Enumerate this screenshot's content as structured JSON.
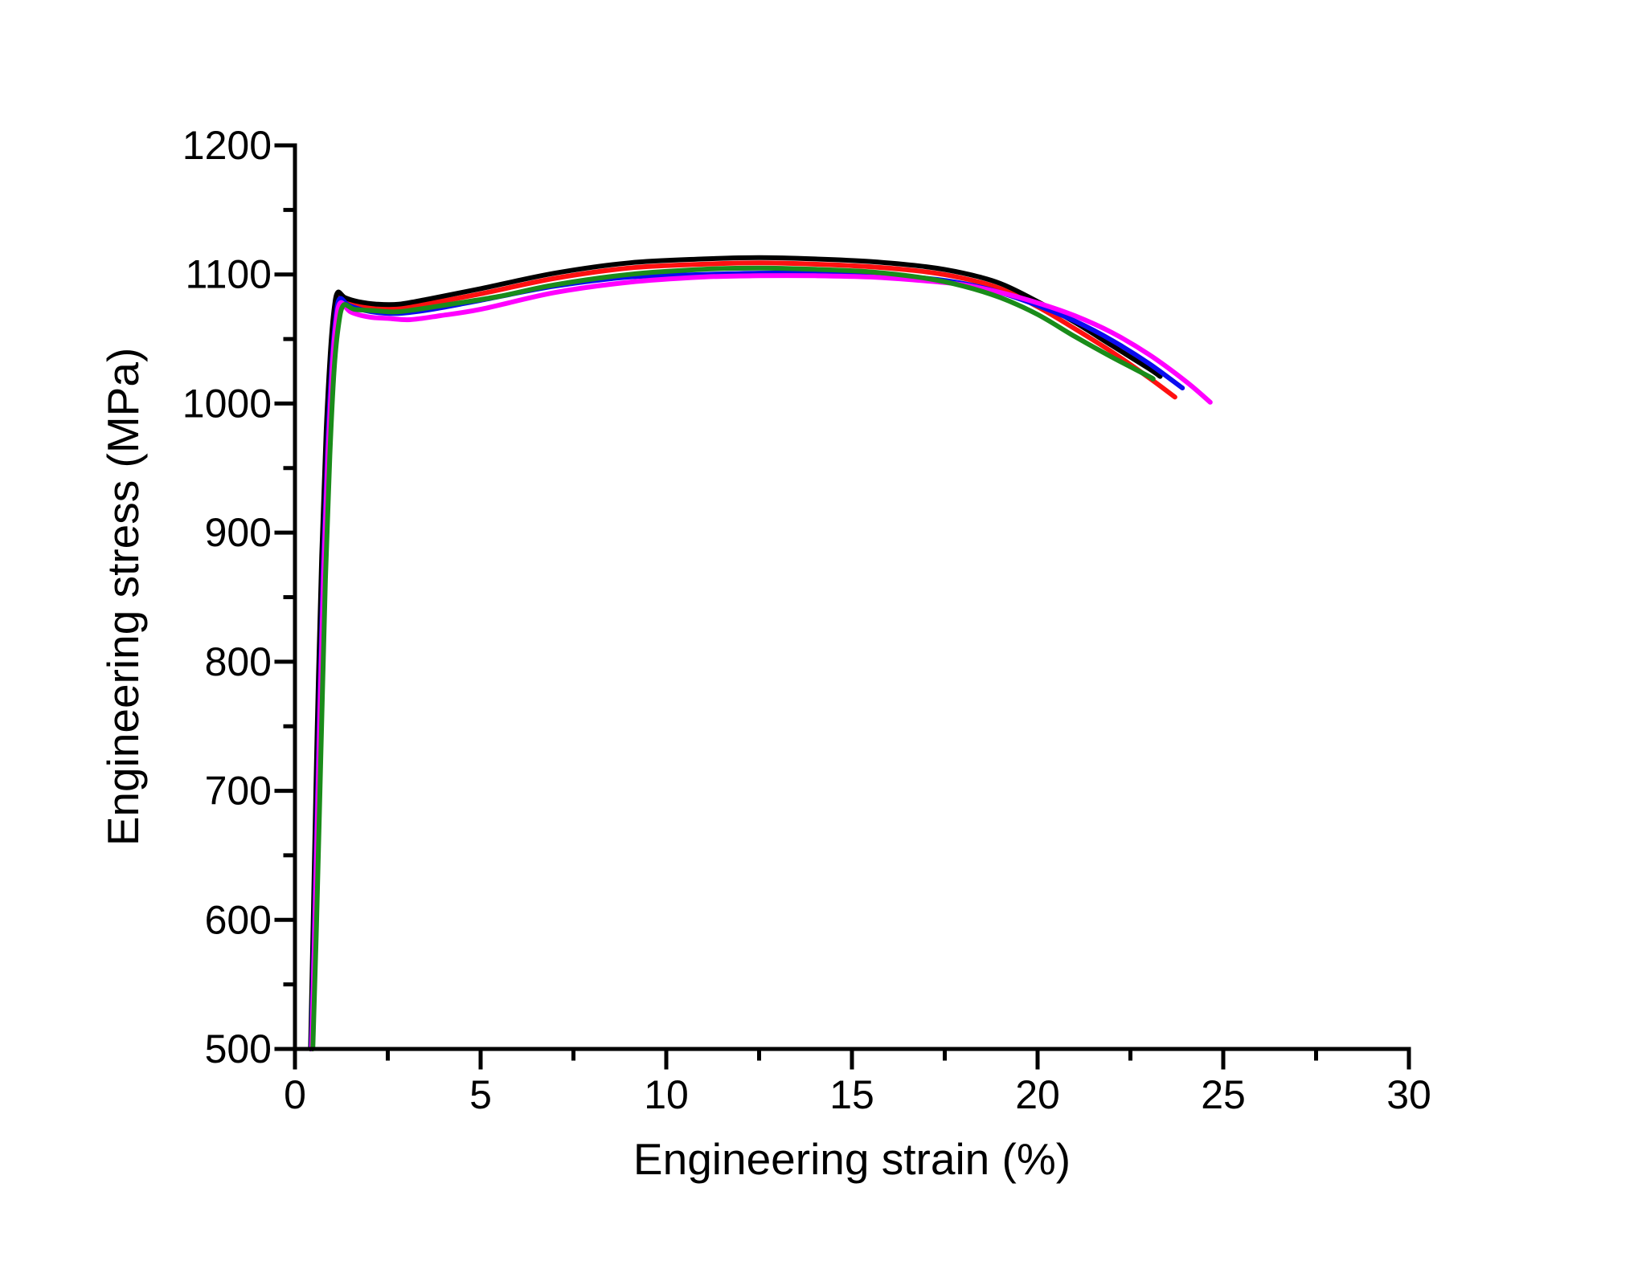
{
  "chart_data": {
    "type": "line",
    "title": "",
    "xlabel": "Engineering strain (%)",
    "ylabel": "Engineering stress (MPa)",
    "xlim": [
      0,
      30
    ],
    "ylim": [
      500,
      1200
    ],
    "x_major_ticks": [
      0,
      5,
      10,
      15,
      20,
      25,
      30
    ],
    "x_minor_ticks": [
      2.5,
      7.5,
      12.5,
      17.5,
      22.5,
      27.5
    ],
    "y_major_ticks": [
      500,
      600,
      700,
      800,
      900,
      1000,
      1100,
      1200
    ],
    "y_minor_ticks": [
      550,
      650,
      750,
      850,
      950,
      1050,
      1150
    ],
    "grid": false,
    "legend_position": "none",
    "axis_color": "#000000",
    "background_color": "#ffffff",
    "series": [
      {
        "name": "red",
        "color": "#ff1010",
        "points": [
          [
            0.43,
            500
          ],
          [
            0.52,
            606
          ],
          [
            0.62,
            742
          ],
          [
            0.74,
            876
          ],
          [
            0.86,
            972
          ],
          [
            0.97,
            1032
          ],
          [
            1.07,
            1067
          ],
          [
            1.17,
            1083
          ],
          [
            1.4,
            1079
          ],
          [
            1.8,
            1076
          ],
          [
            2.3,
            1074
          ],
          [
            2.9,
            1074
          ],
          [
            3.7,
            1078
          ],
          [
            5.0,
            1085
          ],
          [
            7.0,
            1097
          ],
          [
            9.0,
            1105
          ],
          [
            11.0,
            1108
          ],
          [
            12.5,
            1109
          ],
          [
            14.0,
            1108
          ],
          [
            15.5,
            1106
          ],
          [
            17.0,
            1102
          ],
          [
            18.0,
            1097
          ],
          [
            19.0,
            1089
          ],
          [
            20.0,
            1075
          ],
          [
            21.0,
            1058
          ],
          [
            22.0,
            1040
          ],
          [
            23.0,
            1020
          ],
          [
            23.7,
            1005
          ]
        ]
      },
      {
        "name": "black",
        "color": "#000000",
        "points": [
          [
            0.42,
            500
          ],
          [
            0.5,
            610
          ],
          [
            0.6,
            748
          ],
          [
            0.72,
            882
          ],
          [
            0.84,
            978
          ],
          [
            0.95,
            1038
          ],
          [
            1.05,
            1072
          ],
          [
            1.15,
            1086
          ],
          [
            1.35,
            1082
          ],
          [
            1.7,
            1079
          ],
          [
            2.2,
            1077
          ],
          [
            2.8,
            1077
          ],
          [
            3.6,
            1081
          ],
          [
            5.0,
            1089
          ],
          [
            7.0,
            1101
          ],
          [
            9.0,
            1109
          ],
          [
            11.0,
            1112
          ],
          [
            12.5,
            1113
          ],
          [
            14.0,
            1112
          ],
          [
            15.5,
            1110
          ],
          [
            17.0,
            1106
          ],
          [
            18.0,
            1101
          ],
          [
            19.0,
            1093
          ],
          [
            20.0,
            1079
          ],
          [
            21.0,
            1063
          ],
          [
            22.0,
            1045
          ],
          [
            23.0,
            1027
          ],
          [
            23.3,
            1021
          ]
        ]
      },
      {
        "name": "blue",
        "color": "#0b0bf0",
        "points": [
          [
            0.44,
            500
          ],
          [
            0.53,
            602
          ],
          [
            0.64,
            737
          ],
          [
            0.76,
            871
          ],
          [
            0.88,
            967
          ],
          [
            0.99,
            1029
          ],
          [
            1.09,
            1064
          ],
          [
            1.2,
            1081
          ],
          [
            1.45,
            1076
          ],
          [
            1.9,
            1072
          ],
          [
            2.4,
            1070
          ],
          [
            2.9,
            1070
          ],
          [
            3.7,
            1073
          ],
          [
            5.0,
            1080
          ],
          [
            7.0,
            1091
          ],
          [
            9.0,
            1098
          ],
          [
            11.0,
            1100
          ],
          [
            12.5,
            1101
          ],
          [
            14.0,
            1101
          ],
          [
            15.5,
            1100
          ],
          [
            17.0,
            1097
          ],
          [
            18.0,
            1093
          ],
          [
            19.0,
            1086
          ],
          [
            20.0,
            1076
          ],
          [
            21.0,
            1064
          ],
          [
            22.0,
            1049
          ],
          [
            23.0,
            1031
          ],
          [
            23.9,
            1012
          ]
        ]
      },
      {
        "name": "magenta",
        "color": "#ff00ff",
        "points": [
          [
            0.45,
            500
          ],
          [
            0.54,
            600
          ],
          [
            0.65,
            733
          ],
          [
            0.77,
            867
          ],
          [
            0.89,
            962
          ],
          [
            1.0,
            1026
          ],
          [
            1.1,
            1061
          ],
          [
            1.22,
            1078
          ],
          [
            1.5,
            1071
          ],
          [
            2.0,
            1067
          ],
          [
            2.5,
            1066
          ],
          [
            3.1,
            1065
          ],
          [
            3.9,
            1068
          ],
          [
            5.0,
            1073
          ],
          [
            7.0,
            1086
          ],
          [
            9.0,
            1094
          ],
          [
            11.0,
            1098
          ],
          [
            12.5,
            1099
          ],
          [
            14.0,
            1099
          ],
          [
            15.5,
            1098
          ],
          [
            17.0,
            1095
          ],
          [
            18.0,
            1092
          ],
          [
            19.0,
            1086
          ],
          [
            20.0,
            1078
          ],
          [
            21.0,
            1068
          ],
          [
            22.0,
            1055
          ],
          [
            23.0,
            1038
          ],
          [
            24.0,
            1017
          ],
          [
            24.65,
            1001
          ]
        ]
      },
      {
        "name": "green",
        "color": "#1a8c1a",
        "points": [
          [
            0.48,
            500
          ],
          [
            0.58,
            596
          ],
          [
            0.7,
            730
          ],
          [
            0.82,
            864
          ],
          [
            0.94,
            960
          ],
          [
            1.05,
            1024
          ],
          [
            1.16,
            1058
          ],
          [
            1.3,
            1076
          ],
          [
            1.6,
            1073
          ],
          [
            2.1,
            1072
          ],
          [
            2.7,
            1071
          ],
          [
            3.3,
            1073
          ],
          [
            4.2,
            1077
          ],
          [
            5.5,
            1083
          ],
          [
            7.0,
            1092
          ],
          [
            9.0,
            1100
          ],
          [
            11.0,
            1104
          ],
          [
            12.5,
            1105
          ],
          [
            14.0,
            1104
          ],
          [
            15.5,
            1102
          ],
          [
            17.0,
            1097
          ],
          [
            18.0,
            1091
          ],
          [
            19.0,
            1082
          ],
          [
            20.0,
            1069
          ],
          [
            21.0,
            1052
          ],
          [
            22.0,
            1036
          ],
          [
            23.0,
            1021
          ],
          [
            23.1,
            1019
          ]
        ]
      }
    ]
  }
}
